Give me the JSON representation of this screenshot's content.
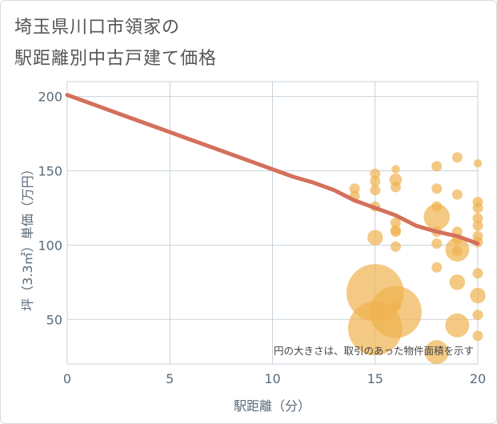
{
  "page": {
    "title_line1": "埼玉県川口市領家の",
    "title_line2": "駅距離別中古戸建て価格"
  },
  "chart_data": {
    "type": "scatter",
    "title": "埼玉県川口市領家の 駅距離別中古戸建て価格",
    "xlabel": "駅距離（分）",
    "ylabel": "坪（3.3㎡）単価（万円）",
    "xlim": [
      0,
      20
    ],
    "ylim": [
      20,
      210
    ],
    "xticks": [
      0,
      5,
      10,
      15,
      20
    ],
    "yticks": [
      50,
      100,
      150,
      200
    ],
    "grid": true,
    "annotation": "円の大きさは、取引のあった物件面積を示す",
    "colors": {
      "points": "#f0b24f",
      "trend": "#d4705b",
      "grid": "#c8d3dc",
      "axis_text": "#5a6b7a"
    },
    "scatter": [
      {
        "x": 14,
        "y": 138,
        "s": 1
      },
      {
        "x": 14,
        "y": 133,
        "s": 1
      },
      {
        "x": 15,
        "y": 148,
        "s": 1
      },
      {
        "x": 15,
        "y": 143,
        "s": 1
      },
      {
        "x": 15,
        "y": 137,
        "s": 1
      },
      {
        "x": 15,
        "y": 126,
        "s": 1
      },
      {
        "x": 15,
        "y": 105,
        "s": 1.5
      },
      {
        "x": 15,
        "y": 68,
        "s": 5.5
      },
      {
        "x": 15,
        "y": 44,
        "s": 5.2
      },
      {
        "x": 16,
        "y": 151,
        "s": 0.8
      },
      {
        "x": 16,
        "y": 144,
        "s": 1.2
      },
      {
        "x": 16,
        "y": 139,
        "s": 1
      },
      {
        "x": 16,
        "y": 115,
        "s": 1
      },
      {
        "x": 16,
        "y": 110,
        "s": 1
      },
      {
        "x": 16,
        "y": 109,
        "s": 1
      },
      {
        "x": 16,
        "y": 99,
        "s": 1
      },
      {
        "x": 16,
        "y": 59,
        "s": 1
      },
      {
        "x": 16,
        "y": 55,
        "s": 5
      },
      {
        "x": 18,
        "y": 153,
        "s": 1
      },
      {
        "x": 18,
        "y": 138,
        "s": 1
      },
      {
        "x": 18,
        "y": 126,
        "s": 1
      },
      {
        "x": 18,
        "y": 119,
        "s": 2.5
      },
      {
        "x": 18,
        "y": 109,
        "s": 1
      },
      {
        "x": 18,
        "y": 101,
        "s": 1
      },
      {
        "x": 18,
        "y": 85,
        "s": 1
      },
      {
        "x": 18,
        "y": 28,
        "s": 2.3
      },
      {
        "x": 19,
        "y": 159,
        "s": 1
      },
      {
        "x": 19,
        "y": 134,
        "s": 1
      },
      {
        "x": 19,
        "y": 109,
        "s": 1
      },
      {
        "x": 19,
        "y": 104,
        "s": 1
      },
      {
        "x": 19,
        "y": 97,
        "s": 2.3
      },
      {
        "x": 19,
        "y": 96,
        "s": 1
      },
      {
        "x": 19,
        "y": 75,
        "s": 1.5
      },
      {
        "x": 19,
        "y": 46,
        "s": 2.3
      },
      {
        "x": 20,
        "y": 155,
        "s": 0.8
      },
      {
        "x": 20,
        "y": 129,
        "s": 1
      },
      {
        "x": 20,
        "y": 125,
        "s": 1
      },
      {
        "x": 20,
        "y": 118,
        "s": 1
      },
      {
        "x": 20,
        "y": 113,
        "s": 1
      },
      {
        "x": 20,
        "y": 106,
        "s": 1
      },
      {
        "x": 20,
        "y": 102,
        "s": 1
      },
      {
        "x": 20,
        "y": 81,
        "s": 1
      },
      {
        "x": 20,
        "y": 66,
        "s": 1.5
      },
      {
        "x": 20,
        "y": 53,
        "s": 1
      },
      {
        "x": 20,
        "y": 39,
        "s": 1
      }
    ],
    "trend": {
      "name": "trend",
      "x": [
        0,
        1,
        2,
        3,
        4,
        5,
        6,
        7,
        8,
        9,
        10,
        11,
        12,
        13,
        14,
        15,
        16,
        17,
        18,
        19,
        20
      ],
      "y": [
        201,
        196,
        191,
        186,
        181,
        176,
        171,
        166,
        161,
        156,
        151,
        146,
        142,
        137,
        130,
        125,
        120,
        113,
        109,
        106,
        101
      ]
    }
  }
}
